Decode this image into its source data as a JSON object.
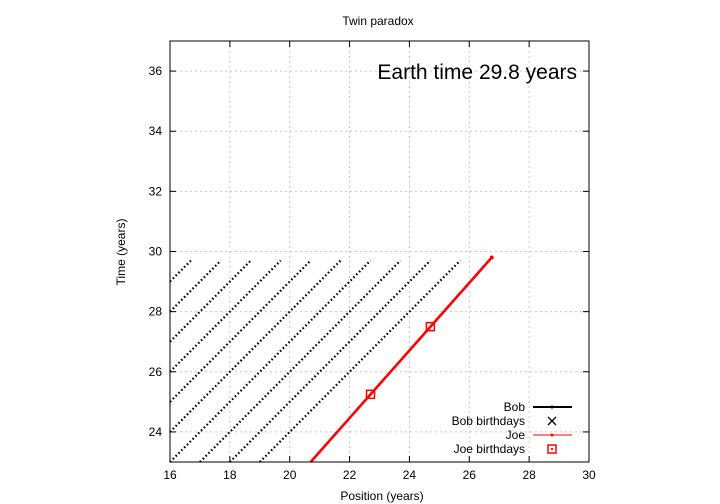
{
  "chart_data": {
    "type": "line",
    "title": "Twin paradox",
    "xlabel": "Position (years)",
    "ylabel": "Time (years)",
    "xlim": [
      16,
      30
    ],
    "ylim": [
      23,
      37
    ],
    "x_ticks": [
      16,
      18,
      20,
      22,
      24,
      26,
      28,
      30
    ],
    "y_ticks": [
      24,
      26,
      28,
      30,
      32,
      34,
      36
    ],
    "grid": true,
    "annotation": "Earth time 29.8 years",
    "legend_position": "bottom-right",
    "legend": [
      "Bob",
      "Bob birthdays",
      "Joe",
      "Joe birthdays"
    ],
    "colors": {
      "bob": "#000000",
      "joe": "#ff0000",
      "grid": "#c8c8c8"
    },
    "series": [
      {
        "name": "Bob",
        "style": "dotted diagonal worldlines",
        "segments": [
          {
            "x": [
              16.0,
              16.7
            ],
            "y": [
              29.0,
              29.7
            ]
          },
          {
            "x": [
              16.0,
              17.7
            ],
            "y": [
              28.0,
              29.7
            ]
          },
          {
            "x": [
              16.0,
              18.7
            ],
            "y": [
              27.0,
              29.7
            ]
          },
          {
            "x": [
              16.0,
              19.7
            ],
            "y": [
              26.0,
              29.7
            ]
          },
          {
            "x": [
              16.0,
              20.7
            ],
            "y": [
              25.0,
              29.7
            ]
          },
          {
            "x": [
              16.0,
              21.7
            ],
            "y": [
              24.0,
              29.7
            ]
          },
          {
            "x": [
              16.0,
              22.7
            ],
            "y": [
              23.0,
              29.7
            ]
          },
          {
            "x": [
              17.0,
              23.7
            ],
            "y": [
              23.0,
              29.7
            ]
          },
          {
            "x": [
              18.0,
              24.7
            ],
            "y": [
              23.0,
              29.7
            ]
          },
          {
            "x": [
              19.0,
              25.7
            ],
            "y": [
              23.0,
              29.7
            ]
          }
        ]
      },
      {
        "name": "Bob birthdays",
        "points": []
      },
      {
        "name": "Joe",
        "x": [
          20.7,
          26.75
        ],
        "y": [
          23.0,
          29.8
        ]
      },
      {
        "name": "Joe birthdays",
        "x": [
          22.7,
          24.7
        ],
        "y": [
          25.25,
          27.5
        ]
      }
    ]
  }
}
